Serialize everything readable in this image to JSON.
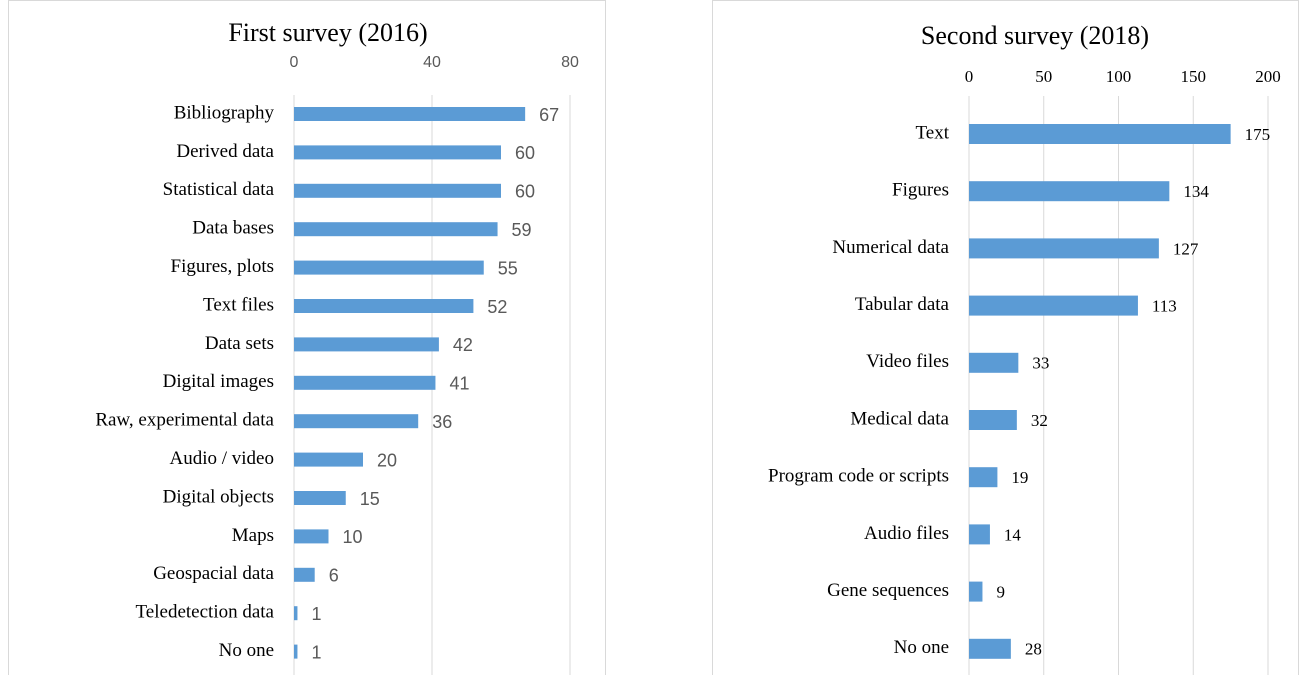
{
  "chart_data": [
    {
      "type": "bar",
      "orientation": "horizontal",
      "title": "First survey (2016)",
      "categories": [
        "Bibliography",
        "Derived data",
        "Statistical data",
        "Data bases",
        "Figures, plots",
        "Text files",
        "Data sets",
        "Digital images",
        "Raw, experimental data",
        "Audio / video",
        "Digital objects",
        "Maps",
        "Geospacial data",
        "Teledetection data",
        "No one"
      ],
      "values": [
        67,
        60,
        60,
        59,
        55,
        52,
        42,
        41,
        36,
        20,
        15,
        10,
        6,
        1,
        1
      ],
      "color": "#5b9bd5",
      "xlim": [
        0,
        80
      ],
      "xticks": [
        0,
        40,
        80
      ],
      "grid": true
    },
    {
      "type": "bar",
      "orientation": "horizontal",
      "title": "Second survey (2018)",
      "categories": [
        "Text",
        "Figures",
        "Numerical data",
        "Tabular data",
        "Video files",
        "Medical data",
        "Program code or scripts",
        "Audio files",
        "Gene sequences",
        "No one"
      ],
      "values": [
        175,
        134,
        127,
        113,
        33,
        32,
        19,
        14,
        9,
        28
      ],
      "color": "#5b9bd5",
      "xlim": [
        0,
        200
      ],
      "xticks": [
        0,
        50,
        100,
        150,
        200
      ],
      "grid": true
    }
  ]
}
